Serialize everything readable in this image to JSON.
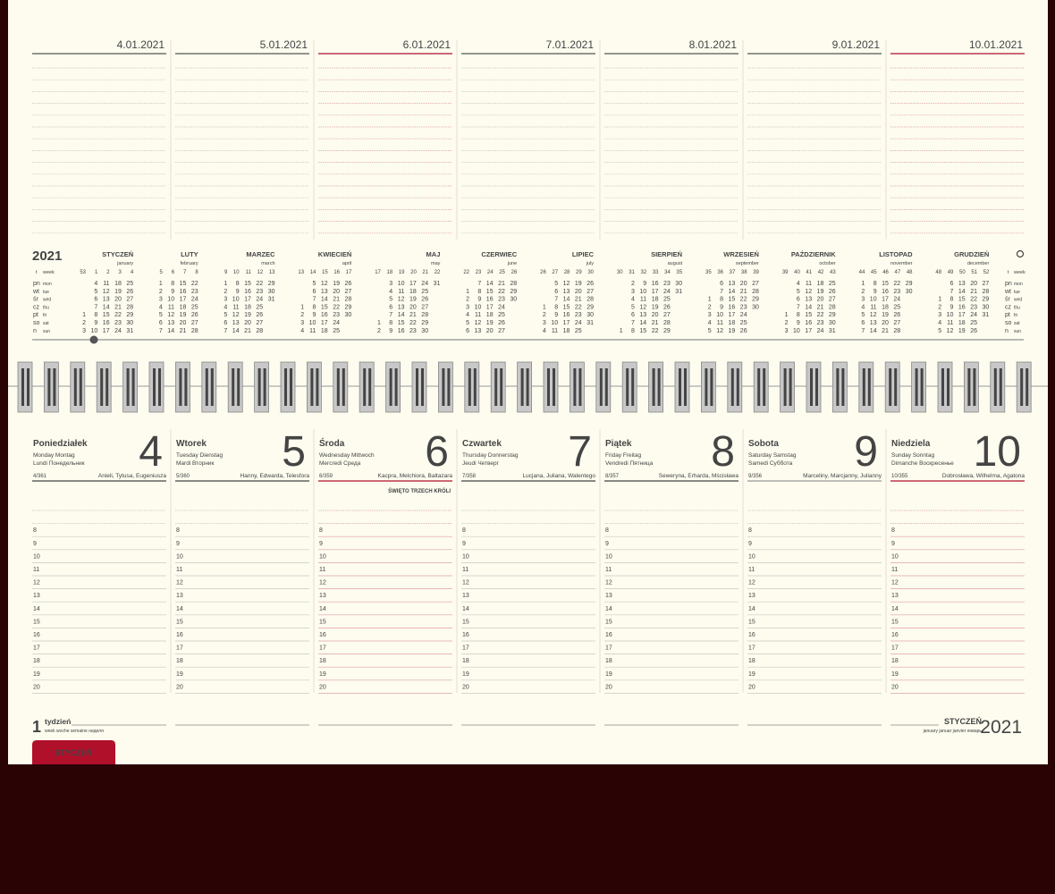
{
  "top_dates": [
    {
      "text": "4.01.2021",
      "color": "#555555"
    },
    {
      "text": "5.01.2021",
      "color": "#555555"
    },
    {
      "text": "6.01.2021",
      "color": "#b0102a"
    },
    {
      "text": "7.01.2021",
      "color": "#555555"
    },
    {
      "text": "8.01.2021",
      "color": "#555555"
    },
    {
      "text": "9.01.2021",
      "color": "#555555"
    },
    {
      "text": "10.01.2021",
      "color": "#b0102a"
    }
  ],
  "calendar": {
    "year": 2021,
    "week_label": {
      "pl": "t",
      "en": "week"
    },
    "weekdays": [
      {
        "pl": "pn",
        "en": "mon"
      },
      {
        "pl": "wt",
        "en": "tue"
      },
      {
        "pl": "śr",
        "en": "wed"
      },
      {
        "pl": "cz",
        "en": "thu"
      },
      {
        "pl": "pt",
        "en": "fri"
      },
      {
        "pl": "so",
        "en": "sat"
      },
      {
        "pl": "n",
        "en": "sun"
      }
    ],
    "months": [
      {
        "name": "STYCZEŃ",
        "en": "january",
        "weeks": [
          53,
          1,
          2,
          3,
          4
        ],
        "holidays": [
          1,
          6
        ],
        "days": [
          1,
          2,
          3,
          4,
          5,
          6,
          7,
          8,
          9,
          10,
          11,
          12,
          13,
          14,
          15,
          16,
          17,
          18,
          19,
          20,
          21,
          22,
          23,
          24,
          25,
          26,
          27,
          28,
          29,
          30,
          31
        ]
      },
      {
        "name": "LUTY",
        "en": "february",
        "weeks": [
          5,
          6,
          7,
          8
        ],
        "holidays": [],
        "days": [
          1,
          2,
          3,
          4,
          5,
          6,
          7,
          8,
          9,
          10,
          11,
          12,
          13,
          14,
          15,
          16,
          17,
          18,
          19,
          20,
          21,
          22,
          23,
          24,
          25,
          26,
          27,
          28
        ]
      },
      {
        "name": "MARZEC",
        "en": "march",
        "weeks": [
          9,
          10,
          11,
          12,
          13
        ],
        "holidays": [],
        "days": [
          1,
          2,
          3,
          4,
          5,
          6,
          7,
          8,
          9,
          10,
          11,
          12,
          13,
          14,
          15,
          16,
          17,
          18,
          19,
          20,
          21,
          22,
          23,
          24,
          25,
          26,
          27,
          28,
          29,
          30,
          31
        ]
      },
      {
        "name": "KWIECIEŃ",
        "en": "april",
        "weeks": [
          13,
          14,
          15,
          16,
          17
        ],
        "holidays": [
          4,
          5
        ],
        "days": [
          1,
          2,
          3,
          4,
          5,
          6,
          7,
          8,
          9,
          10,
          11,
          12,
          13,
          14,
          15,
          16,
          17,
          18,
          19,
          20,
          21,
          22,
          23,
          24,
          25,
          26,
          27,
          28,
          29,
          30
        ]
      },
      {
        "name": "MAJ",
        "en": "may",
        "weeks": [
          17,
          18,
          19,
          20,
          21,
          22
        ],
        "holidays": [
          1,
          3,
          23
        ],
        "days": [
          1,
          2,
          3,
          4,
          5,
          6,
          7,
          8,
          9,
          10,
          11,
          12,
          13,
          14,
          15,
          16,
          17,
          18,
          19,
          20,
          21,
          22,
          23,
          24,
          25,
          26,
          27,
          28,
          29,
          30,
          31
        ]
      },
      {
        "name": "CZERWIEC",
        "en": "june",
        "weeks": [
          22,
          23,
          24,
          25,
          26
        ],
        "holidays": [
          3
        ],
        "days": [
          1,
          2,
          3,
          4,
          5,
          6,
          7,
          8,
          9,
          10,
          11,
          12,
          13,
          14,
          15,
          16,
          17,
          18,
          19,
          20,
          21,
          22,
          23,
          24,
          25,
          26,
          27,
          28,
          29,
          30
        ]
      },
      {
        "name": "LIPIEC",
        "en": "july",
        "weeks": [
          26,
          27,
          28,
          29,
          30
        ],
        "holidays": [],
        "days": [
          1,
          2,
          3,
          4,
          5,
          6,
          7,
          8,
          9,
          10,
          11,
          12,
          13,
          14,
          15,
          16,
          17,
          18,
          19,
          20,
          21,
          22,
          23,
          24,
          25,
          26,
          27,
          28,
          29,
          30,
          31
        ]
      },
      {
        "name": "SIERPIEŃ",
        "en": "august",
        "weeks": [
          30,
          31,
          32,
          33,
          34,
          35
        ],
        "holidays": [
          15
        ],
        "days": [
          1,
          2,
          3,
          4,
          5,
          6,
          7,
          8,
          9,
          10,
          11,
          12,
          13,
          14,
          15,
          16,
          17,
          18,
          19,
          20,
          21,
          22,
          23,
          24,
          25,
          26,
          27,
          28,
          29,
          30,
          31
        ]
      },
      {
        "name": "WRZESIEŃ",
        "en": "september",
        "weeks": [
          35,
          36,
          37,
          38,
          39
        ],
        "holidays": [],
        "days": [
          1,
          2,
          3,
          4,
          5,
          6,
          7,
          8,
          9,
          10,
          11,
          12,
          13,
          14,
          15,
          16,
          17,
          18,
          19,
          20,
          21,
          22,
          23,
          24,
          25,
          26,
          27,
          28,
          29,
          30
        ]
      },
      {
        "name": "PAŹDZIERNIK",
        "en": "october",
        "weeks": [
          39,
          40,
          41,
          42,
          43
        ],
        "holidays": [],
        "days": [
          1,
          2,
          3,
          4,
          5,
          6,
          7,
          8,
          9,
          10,
          11,
          12,
          13,
          14,
          15,
          16,
          17,
          18,
          19,
          20,
          21,
          22,
          23,
          24,
          25,
          26,
          27,
          28,
          29,
          30,
          31
        ]
      },
      {
        "name": "LISTOPAD",
        "en": "november",
        "weeks": [
          44,
          45,
          46,
          47,
          48
        ],
        "holidays": [
          1,
          11
        ],
        "days": [
          1,
          2,
          3,
          4,
          5,
          6,
          7,
          8,
          9,
          10,
          11,
          12,
          13,
          14,
          15,
          16,
          17,
          18,
          19,
          20,
          21,
          22,
          23,
          24,
          25,
          26,
          27,
          28,
          29,
          30
        ]
      },
      {
        "name": "GRUDZIEŃ",
        "en": "december",
        "weeks": [
          48,
          49,
          50,
          51,
          52
        ],
        "holidays": [
          25,
          26
        ],
        "days": [
          1,
          2,
          3,
          4,
          5,
          6,
          7,
          8,
          9,
          10,
          11,
          12,
          13,
          14,
          15,
          16,
          17,
          18,
          19,
          20,
          21,
          22,
          23,
          24,
          25,
          26,
          27,
          28,
          29,
          30,
          31
        ]
      }
    ]
  },
  "days": [
    {
      "name": "Poniedziałek",
      "line1": "Monday Montag",
      "line2": "Lundi Понедельник",
      "number": 4,
      "count": "4/361",
      "names": "Anieli, Tytusa, Eugeniusza",
      "color": "#444444"
    },
    {
      "name": "Wtorek",
      "line1": "Tuesday Dienstag",
      "line2": "Mardi Вторник",
      "number": 5,
      "count": "5/360",
      "names": "Hanny, Edwarda, Telesfora",
      "color": "#444444"
    },
    {
      "name": "Środa",
      "line1": "Wednesday Mittwoch",
      "line2": "Mercredi Среда",
      "number": 6,
      "count": "6/359",
      "names": "Kacpra, Melchiora, Baltazara",
      "note": "ŚWIĘTO TRZECH KRÓLI",
      "color": "#b0102a"
    },
    {
      "name": "Czwartek",
      "line1": "Thursday Donnerstag",
      "line2": "Jeudi Четверг",
      "number": 7,
      "count": "7/358",
      "names": "Lucjana, Juliana, Walentego",
      "color": "#444444"
    },
    {
      "name": "Piątek",
      "line1": "Friday Freitag",
      "line2": "Vendredi Пятница",
      "number": 8,
      "count": "8/357",
      "names": "Seweryna, Erharda, Mścisława",
      "color": "#444444"
    },
    {
      "name": "Sobota",
      "line1": "Saturday Samstag",
      "line2": "Samedi Суббота",
      "number": 9,
      "count": "9/356",
      "names": "Marceliny, Marcjanny, Julianny",
      "color": "#999999"
    },
    {
      "name": "Niedziela",
      "line1": "Sunday Sonntag",
      "line2": "Dimanche Воскресенье",
      "number": 10,
      "count": "10/355",
      "names": "Dobrosława, Wilhelma, Agatona",
      "color": "#b0102a"
    }
  ],
  "hours": [
    8,
    9,
    10,
    11,
    12,
    13,
    14,
    15,
    16,
    17,
    18,
    19,
    20
  ],
  "footer": {
    "week_number": 1,
    "week_word": "tydzień",
    "week_sub": "week woche semaine неделя",
    "month": "STYCZEŃ",
    "month_sub": "january januar janvier январь",
    "year": 2021,
    "tab": "STYCZEŃ"
  }
}
